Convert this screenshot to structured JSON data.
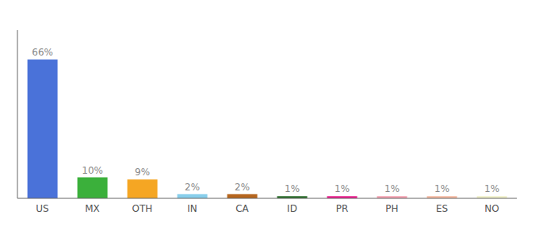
{
  "chart_data": {
    "type": "bar",
    "categories": [
      "US",
      "MX",
      "OTH",
      "IN",
      "CA",
      "ID",
      "PR",
      "PH",
      "ES",
      "NO"
    ],
    "values": [
      66,
      10,
      9,
      2,
      2,
      1,
      1,
      1,
      1,
      1
    ],
    "value_labels": [
      "66%",
      "10%",
      "9%",
      "2%",
      "2%",
      "1%",
      "1%",
      "1%",
      "1%",
      "1%"
    ],
    "colors": [
      "#4a72d9",
      "#3bb03b",
      "#f5a623",
      "#87ceeb",
      "#b5651d",
      "#2d6e2d",
      "#e91e8c",
      "#f4a0b0",
      "#f5b8a0",
      "#f0f0c8"
    ],
    "ylim": [
      0,
      80
    ],
    "data_labels": true,
    "tick_labels": "x"
  }
}
